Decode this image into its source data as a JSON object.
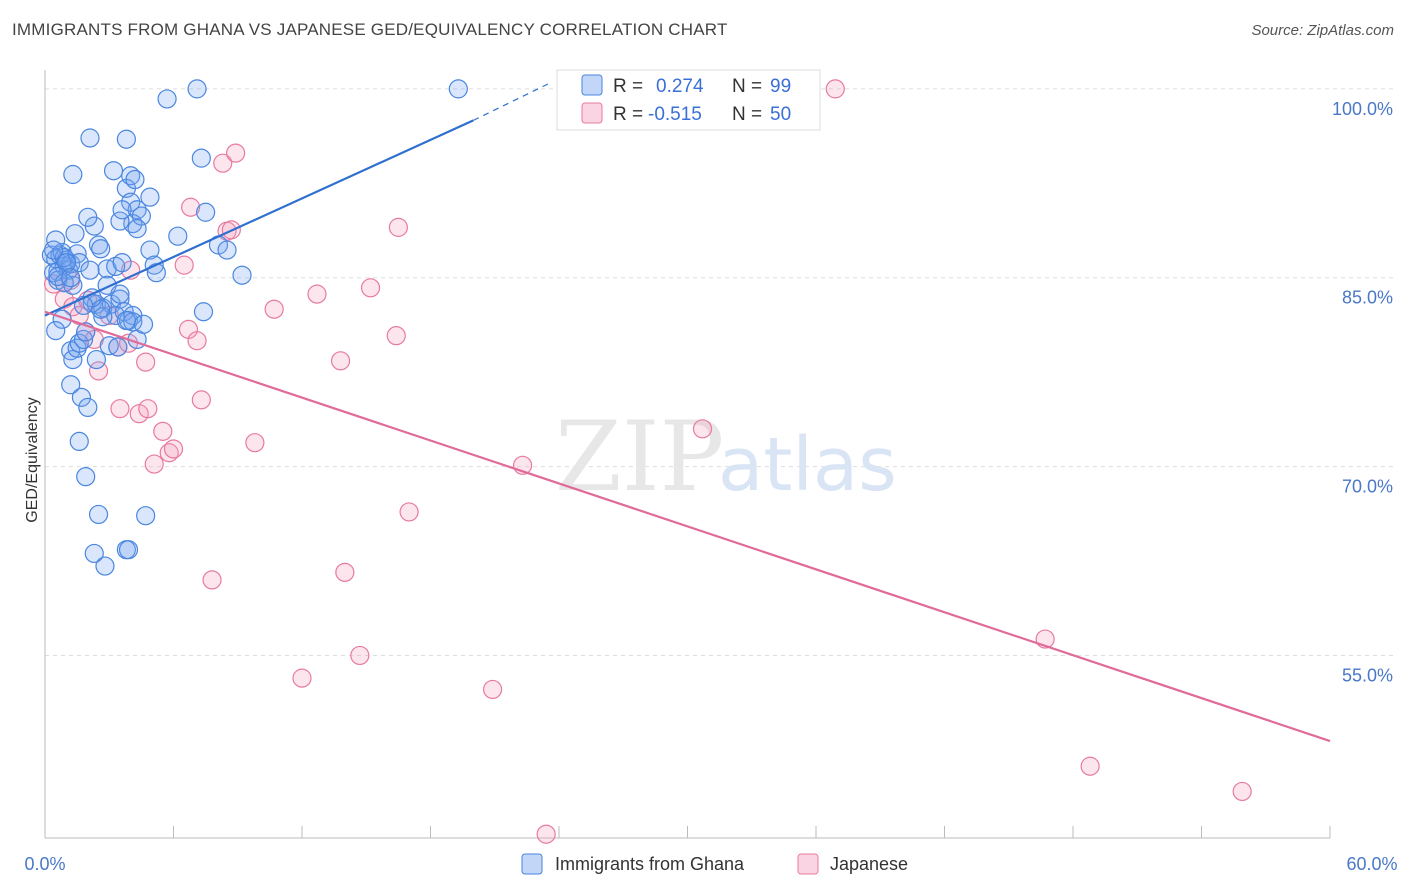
{
  "title": "IMMIGRANTS FROM GHANA VS JAPANESE GED/EQUIVALENCY CORRELATION CHART",
  "source": "Source: ZipAtlas.com",
  "watermark": {
    "zip": "ZIP",
    "atlas": "atlas"
  },
  "colors": {
    "ghana": "#4a86e0",
    "ghana_fill": "rgba(120,165,240,0.28)",
    "ghana_line": "#2f6fcf",
    "japanese": "#e87aa0",
    "japanese_fill": "rgba(245,160,190,0.28)",
    "japanese_line": "#e06a98",
    "grid": "#dddddd",
    "tick_label": "#4a78c8"
  },
  "legend": {
    "r_label": "R =",
    "n_label": "N =",
    "rows": [
      {
        "r": "0.274",
        "n": "99"
      },
      {
        "r": "-0.515",
        "n": "50"
      }
    ]
  },
  "chart_data": {
    "type": "scatter",
    "title": "IMMIGRANTS FROM GHANA VS JAPANESE GED/EQUIVALENCY CORRELATION CHART",
    "xlabel": "",
    "ylabel": "GED/Equivalency",
    "xlim": [
      0,
      60
    ],
    "ylim": [
      40.5,
      101.5
    ],
    "x_tick_labels": [
      "0.0%",
      "60.0%"
    ],
    "y_ticks": [
      55,
      70,
      85,
      100
    ],
    "y_tick_labels": [
      "55.0%",
      "70.0%",
      "85.0%",
      "100.0%"
    ],
    "grid": true,
    "legend_position": "top-center",
    "series": [
      {
        "name": "Immigrants from Ghana",
        "r": 0.274,
        "n": 99,
        "trend": {
          "x": [
            0,
            20
          ],
          "y": [
            82.0,
            97.5
          ],
          "dashed_to": [
            23.5,
            100.4
          ]
        },
        "points": [
          [
            0.3,
            86.8
          ],
          [
            0.5,
            86.5
          ],
          [
            0.6,
            85.5
          ],
          [
            0.7,
            86.8
          ],
          [
            0.8,
            87.0
          ],
          [
            0.9,
            85.9
          ],
          [
            1.0,
            86.4
          ],
          [
            1.1,
            85.6
          ],
          [
            1.2,
            86.1
          ],
          [
            0.4,
            85.4
          ],
          [
            0.6,
            84.8
          ],
          [
            1.3,
            84.4
          ],
          [
            0.5,
            88.0
          ],
          [
            0.9,
            86.6
          ],
          [
            1.4,
            88.5
          ],
          [
            1.5,
            86.9
          ],
          [
            1.6,
            86.2
          ],
          [
            0.8,
            81.7
          ],
          [
            0.5,
            80.8
          ],
          [
            1.2,
            79.2
          ],
          [
            1.3,
            78.5
          ],
          [
            1.5,
            79.4
          ],
          [
            1.6,
            79.8
          ],
          [
            1.8,
            80.1
          ],
          [
            1.9,
            80.7
          ],
          [
            1.2,
            76.5
          ],
          [
            1.7,
            75.5
          ],
          [
            2.0,
            74.7
          ],
          [
            1.6,
            72.0
          ],
          [
            1.9,
            69.2
          ],
          [
            2.5,
            66.2
          ],
          [
            2.3,
            63.1
          ],
          [
            2.8,
            62.1
          ],
          [
            3.8,
            63.4
          ],
          [
            3.9,
            63.4
          ],
          [
            4.7,
            66.1
          ],
          [
            1.3,
            93.2
          ],
          [
            2.1,
            96.1
          ],
          [
            2.3,
            89.1
          ],
          [
            2.0,
            89.8
          ],
          [
            2.5,
            87.6
          ],
          [
            2.6,
            87.3
          ],
          [
            2.9,
            85.7
          ],
          [
            3.3,
            85.9
          ],
          [
            3.6,
            86.2
          ],
          [
            2.2,
            83.0
          ],
          [
            2.4,
            82.9
          ],
          [
            2.7,
            82.6
          ],
          [
            3.1,
            82.9
          ],
          [
            3.3,
            82.0
          ],
          [
            3.5,
            83.3
          ],
          [
            3.7,
            82.3
          ],
          [
            3.9,
            81.6
          ],
          [
            4.1,
            82.0
          ],
          [
            3.0,
            79.6
          ],
          [
            3.4,
            79.5
          ],
          [
            2.4,
            78.5
          ],
          [
            4.3,
            80.1
          ],
          [
            4.1,
            81.5
          ],
          [
            2.9,
            84.4
          ],
          [
            3.5,
            83.7
          ],
          [
            3.2,
            93.5
          ],
          [
            3.8,
            96.0
          ],
          [
            3.8,
            92.1
          ],
          [
            4.0,
            93.1
          ],
          [
            4.2,
            92.8
          ],
          [
            4.0,
            91.0
          ],
          [
            4.3,
            90.4
          ],
          [
            4.1,
            89.3
          ],
          [
            4.5,
            89.9
          ],
          [
            4.3,
            88.9
          ],
          [
            3.5,
            89.5
          ],
          [
            3.6,
            90.4
          ],
          [
            4.9,
            91.4
          ],
          [
            4.9,
            87.2
          ],
          [
            5.1,
            86.0
          ],
          [
            5.2,
            85.4
          ],
          [
            5.7,
            99.2
          ],
          [
            7.1,
            100.0
          ],
          [
            19.3,
            100.0
          ],
          [
            7.3,
            94.5
          ],
          [
            7.5,
            90.2
          ],
          [
            6.2,
            88.3
          ],
          [
            8.1,
            87.6
          ],
          [
            8.5,
            87.2
          ],
          [
            9.2,
            85.2
          ],
          [
            7.4,
            82.3
          ],
          [
            3.8,
            81.6
          ],
          [
            4.6,
            81.3
          ],
          [
            2.7,
            81.9
          ],
          [
            2.6,
            82.5
          ],
          [
            2.2,
            83.4
          ],
          [
            1.0,
            86.2
          ],
          [
            0.9,
            84.6
          ],
          [
            0.6,
            85.1
          ],
          [
            1.2,
            85.0
          ],
          [
            2.1,
            85.6
          ],
          [
            0.4,
            87.2
          ],
          [
            1.8,
            82.8
          ]
        ]
      },
      {
        "name": "Japanese",
        "r": -0.515,
        "n": 50,
        "trend": {
          "x": [
            0,
            60
          ],
          "y": [
            82.3,
            48.2
          ]
        },
        "points": [
          [
            0.4,
            84.5
          ],
          [
            0.9,
            83.3
          ],
          [
            1.3,
            82.7
          ],
          [
            1.6,
            82.0
          ],
          [
            1.9,
            80.7
          ],
          [
            2.3,
            80.1
          ],
          [
            2.5,
            77.6
          ],
          [
            3.4,
            79.5
          ],
          [
            3.9,
            79.8
          ],
          [
            4.7,
            78.3
          ],
          [
            3.5,
            74.6
          ],
          [
            4.4,
            74.2
          ],
          [
            4.8,
            74.6
          ],
          [
            5.1,
            70.2
          ],
          [
            5.5,
            72.8
          ],
          [
            5.8,
            71.1
          ],
          [
            6.0,
            71.4
          ],
          [
            6.7,
            80.9
          ],
          [
            7.1,
            80.0
          ],
          [
            7.3,
            75.3
          ],
          [
            6.8,
            90.6
          ],
          [
            8.3,
            94.1
          ],
          [
            8.9,
            94.9
          ],
          [
            8.5,
            88.7
          ],
          [
            8.7,
            88.8
          ],
          [
            7.8,
            61.0
          ],
          [
            9.8,
            71.9
          ],
          [
            10.7,
            82.5
          ],
          [
            12.0,
            53.2
          ],
          [
            12.7,
            83.7
          ],
          [
            13.8,
            78.4
          ],
          [
            14.0,
            61.6
          ],
          [
            14.7,
            55.0
          ],
          [
            15.2,
            84.2
          ],
          [
            16.4,
            80.4
          ],
          [
            16.5,
            89.0
          ],
          [
            17.0,
            66.4
          ],
          [
            20.9,
            52.3
          ],
          [
            22.3,
            70.1
          ],
          [
            23.4,
            40.8
          ],
          [
            30.7,
            73.0
          ],
          [
            36.9,
            100.0
          ],
          [
            46.7,
            56.3
          ],
          [
            48.8,
            46.2
          ],
          [
            55.9,
            44.2
          ],
          [
            4.0,
            85.6
          ],
          [
            3.0,
            82.0
          ],
          [
            1.2,
            84.8
          ],
          [
            6.5,
            86.0
          ],
          [
            2.0,
            83.2
          ]
        ]
      }
    ]
  }
}
